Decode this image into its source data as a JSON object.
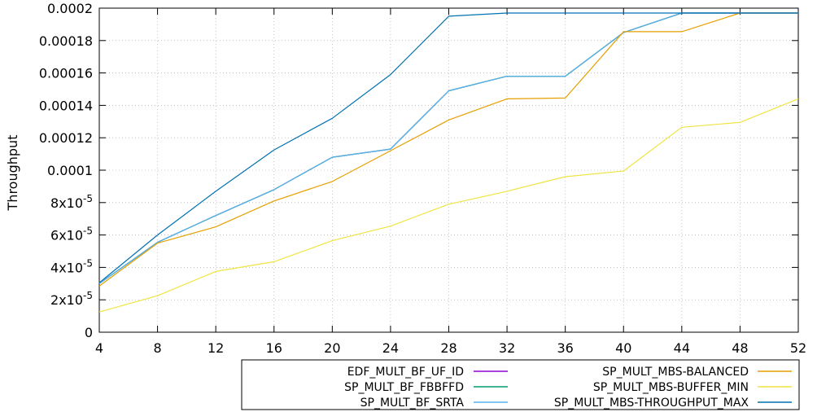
{
  "chart_data": {
    "type": "line",
    "title": "",
    "xlabel": "",
    "ylabel": "Throughput",
    "xlim": [
      4,
      52
    ],
    "ylim": [
      0,
      0.0002
    ],
    "grid": true,
    "legend_position": "bottom-right",
    "x_ticks": [
      "4",
      "8",
      "12",
      "16",
      "20",
      "24",
      "28",
      "32",
      "36",
      "40",
      "44",
      "48",
      "52"
    ],
    "y_ticks": [
      {
        "value": 0,
        "base": "0",
        "exp": ""
      },
      {
        "value": 2e-05,
        "base": "2x10",
        "exp": "-5"
      },
      {
        "value": 4e-05,
        "base": "4x10",
        "exp": "-5"
      },
      {
        "value": 6e-05,
        "base": "6x10",
        "exp": "-5"
      },
      {
        "value": 8e-05,
        "base": "8x10",
        "exp": "-5"
      },
      {
        "value": 0.0001,
        "base": "0.0001",
        "exp": ""
      },
      {
        "value": 0.00012,
        "base": "0.00012",
        "exp": ""
      },
      {
        "value": 0.00014,
        "base": "0.00014",
        "exp": ""
      },
      {
        "value": 0.00016,
        "base": "0.00016",
        "exp": ""
      },
      {
        "value": 0.00018,
        "base": "0.00018",
        "exp": ""
      },
      {
        "value": 0.0002,
        "base": "0.0002",
        "exp": ""
      }
    ],
    "x": [
      4,
      8,
      12,
      16,
      20,
      24,
      28,
      32,
      36,
      40,
      44,
      48,
      52
    ],
    "series": [
      {
        "name": "EDF_MULT_BF_UF_ID",
        "color": "#9400d3",
        "values": [
          3e-05,
          5.55e-05,
          7.2e-05,
          8.8e-05,
          0.000108,
          0.000113,
          0.000149,
          0.000158,
          0.000158,
          0.000185,
          0.000197,
          0.000197,
          0.000197
        ]
      },
      {
        "name": "SP_MULT_BF_FBBFFD",
        "color": "#009e73",
        "values": [
          3e-05,
          5.55e-05,
          7.2e-05,
          8.8e-05,
          0.000108,
          0.000113,
          0.000149,
          0.000158,
          0.000158,
          0.000185,
          0.000197,
          0.000197,
          0.000197
        ]
      },
      {
        "name": "SP_MULT_BF_SRTA",
        "color": "#56b4e9",
        "values": [
          3e-05,
          5.55e-05,
          7.2e-05,
          8.8e-05,
          0.000108,
          0.000113,
          0.000149,
          0.000158,
          0.000158,
          0.000185,
          0.000197,
          0.000197,
          0.000197
        ]
      },
      {
        "name": "SP_MULT_MBS-BALANCED",
        "color": "#e69f00",
        "values": [
          2.85e-05,
          5.5e-05,
          6.5e-05,
          8.1e-05,
          9.3e-05,
          0.000112,
          0.000131,
          0.000144,
          0.0001445,
          0.0001855,
          0.0001855,
          0.000197,
          0.000197
        ]
      },
      {
        "name": "SP_MULT_MBS-BUFFER_MIN",
        "color": "#f0e442",
        "values": [
          1.25e-05,
          2.25e-05,
          3.75e-05,
          4.35e-05,
          5.65e-05,
          6.55e-05,
          7.9e-05,
          8.7e-05,
          9.6e-05,
          9.95e-05,
          0.0001265,
          0.0001295,
          0.000144
        ]
      },
      {
        "name": "SP_MULT_MBS-THROUGHPUT_MAX",
        "color": "#0072b2",
        "values": [
          3.05e-05,
          6e-05,
          8.7e-05,
          0.0001125,
          0.000132,
          0.000159,
          0.000195,
          0.000197,
          0.000197,
          0.000197,
          0.000197,
          0.000197,
          0.000197
        ]
      }
    ]
  }
}
